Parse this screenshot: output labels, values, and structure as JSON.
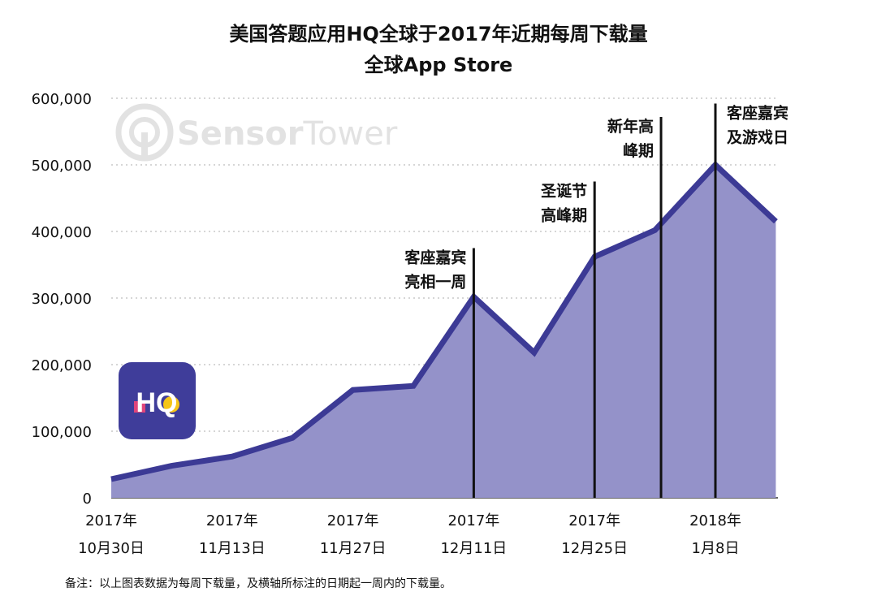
{
  "chart_data": {
    "type": "area",
    "title": "美国答题应用HQ全球于2017年近期每周下载量",
    "subtitle": "全球App Store",
    "xlabel": "",
    "ylabel": "",
    "ylim": [
      0,
      600000
    ],
    "yticks": [
      0,
      100000,
      200000,
      300000,
      400000,
      500000,
      600000
    ],
    "ytick_labels": [
      "0",
      "100,000",
      "200,000",
      "300,000",
      "400,000",
      "500,000",
      "600,000"
    ],
    "x_tick_positions": [
      0,
      2,
      4,
      6,
      8,
      10
    ],
    "x_tick_labels": [
      {
        "year": "2017年",
        "date": "10月30日"
      },
      {
        "year": "2017年",
        "date": "11月13日"
      },
      {
        "year": "2017年",
        "date": "11月27日"
      },
      {
        "year": "2017年",
        "date": "12月11日"
      },
      {
        "year": "2017年",
        "date": "12月25日"
      },
      {
        "year": "2018年",
        "date": "1月8日"
      }
    ],
    "series": [
      {
        "name": "每周下载量",
        "x": [
          0,
          1,
          2,
          3,
          4,
          5,
          6,
          7,
          8,
          9,
          10,
          11
        ],
        "values": [
          28000,
          48000,
          62000,
          90000,
          162000,
          168000,
          302000,
          218000,
          362000,
          402000,
          500000,
          415000
        ],
        "fill": "#9492c9",
        "line": "#3c3a95"
      }
    ],
    "annotations": [
      {
        "x": 6,
        "top": 375000,
        "lines": [
          "客座嘉宾",
          "亮相一周"
        ]
      },
      {
        "x": 8,
        "top": 475000,
        "lines": [
          "圣诞节",
          "高峰期"
        ]
      },
      {
        "x": 9.1,
        "top": 572000,
        "lines": [
          "新年高",
          "峰期"
        ]
      },
      {
        "x": 10,
        "top": 592000,
        "lines": [
          "客座嘉宾",
          "及游戏日"
        ]
      }
    ],
    "watermark": {
      "part1": "Sensor",
      "part2": "Tower"
    },
    "logo_text": "HQ",
    "footnote": "备注：以上图表数据为每周下载量，及横轴所标注的日期起一周内的下载量。"
  }
}
